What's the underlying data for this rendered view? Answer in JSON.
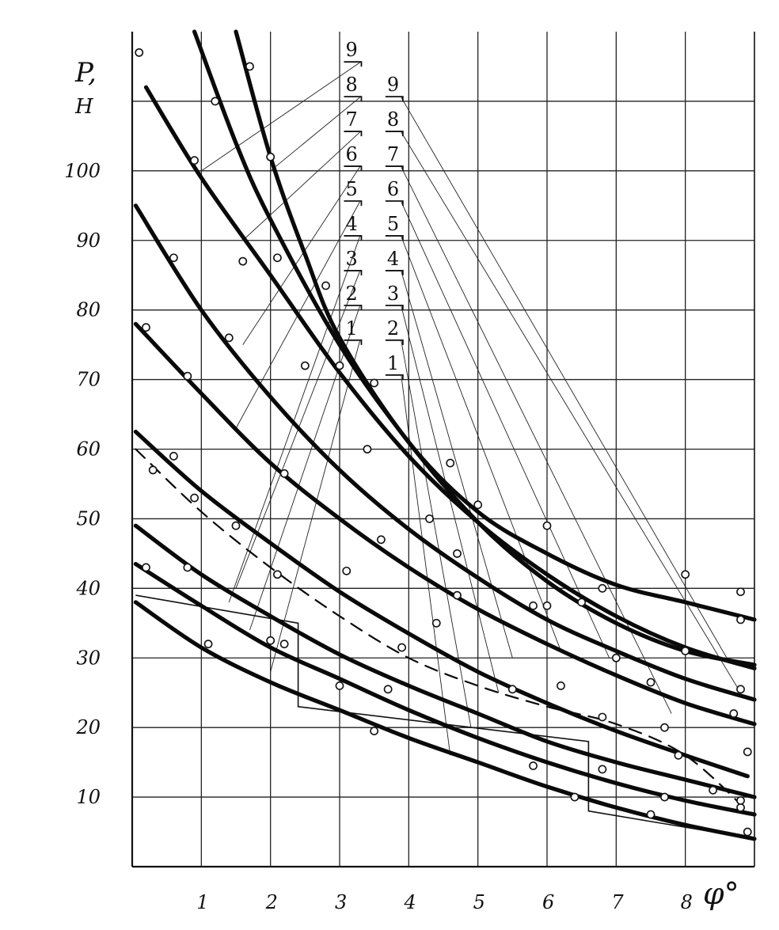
{
  "chart_data": {
    "type": "line",
    "ylabel": "P,",
    "yunit": "H",
    "xlabel": "φ°",
    "xlim": [
      0,
      9
    ],
    "ylim": [
      0,
      120
    ],
    "x_ticks": [
      {
        "value": 1,
        "label": "1"
      },
      {
        "value": 2,
        "label": "2"
      },
      {
        "value": 3,
        "label": "3"
      },
      {
        "value": 4,
        "label": "4"
      },
      {
        "value": 5,
        "label": "5"
      },
      {
        "value": 6,
        "label": "6"
      },
      {
        "value": 7,
        "label": "7"
      },
      {
        "value": 8,
        "label": "8"
      }
    ],
    "y_ticks": [
      {
        "value": 10,
        "label": "10"
      },
      {
        "value": 20,
        "label": "20"
      },
      {
        "value": 30,
        "label": "30"
      },
      {
        "value": 40,
        "label": "40"
      },
      {
        "value": 50,
        "label": "50"
      },
      {
        "value": 60,
        "label": "60"
      },
      {
        "value": 70,
        "label": "70"
      },
      {
        "value": 80,
        "label": "80"
      },
      {
        "value": 90,
        "label": "90"
      },
      {
        "value": 100,
        "label": "100"
      }
    ],
    "grid": true,
    "label_column_left": {
      "labels": [
        "1",
        "2",
        "3",
        "4",
        "5",
        "6",
        "7",
        "8",
        "9"
      ],
      "label_y": [
        76,
        81,
        86,
        91,
        96,
        101,
        106,
        111,
        116
      ],
      "x": 3.2,
      "targets": [
        {
          "x": 2.0,
          "y": 28
        },
        {
          "x": 1.7,
          "y": 34
        },
        {
          "x": 1.5,
          "y": 40
        },
        {
          "x": 1.4,
          "y": 38
        },
        {
          "x": 1.5,
          "y": 63
        },
        {
          "x": 1.6,
          "y": 75
        },
        {
          "x": 1.6,
          "y": 90
        },
        {
          "x": 2.0,
          "y": 100
        },
        {
          "x": 1.0,
          "y": 100
        }
      ]
    },
    "label_column_right": {
      "labels": [
        "1",
        "2",
        "3",
        "4",
        "5",
        "6",
        "7",
        "8",
        "9"
      ],
      "label_y": [
        71,
        76,
        81,
        86,
        91,
        96,
        101,
        106,
        111
      ],
      "x": 3.8,
      "targets": [
        {
          "x": 4.6,
          "y": 16
        },
        {
          "x": 4.9,
          "y": 20
        },
        {
          "x": 5.3,
          "y": 25
        },
        {
          "x": 5.5,
          "y": 30
        },
        {
          "x": 6.2,
          "y": 31
        },
        {
          "x": 6.9,
          "y": 30
        },
        {
          "x": 7.8,
          "y": 22
        },
        {
          "x": 8.8,
          "y": 25
        },
        {
          "x": 8.6,
          "y": 30
        }
      ]
    },
    "series": [
      {
        "style": "thick",
        "points": [
          [
            0.05,
            38
          ],
          [
            1.0,
            31.5
          ],
          [
            2.0,
            26.5
          ],
          [
            3.0,
            22.5
          ],
          [
            4.0,
            18.5
          ],
          [
            5.0,
            15
          ],
          [
            6.0,
            11.5
          ],
          [
            7.0,
            8.5
          ],
          [
            8.0,
            6
          ],
          [
            9.0,
            4
          ]
        ],
        "markers": [
          [
            1.1,
            32
          ],
          [
            3.5,
            19.5
          ],
          [
            6.4,
            10
          ],
          [
            7.5,
            7.5
          ],
          [
            8.9,
            5
          ]
        ]
      },
      {
        "style": "thick",
        "points": [
          [
            0.05,
            43.5
          ],
          [
            1.0,
            37.5
          ],
          [
            2.0,
            31.5
          ],
          [
            3.0,
            27
          ],
          [
            4.0,
            22.5
          ],
          [
            5.0,
            18.5
          ],
          [
            6.0,
            15
          ],
          [
            7.0,
            12
          ],
          [
            8.0,
            9.5
          ],
          [
            9.0,
            7.5
          ]
        ],
        "markers": [
          [
            0.2,
            43
          ],
          [
            2.0,
            32.5
          ],
          [
            3.0,
            26
          ],
          [
            5.8,
            14.5
          ],
          [
            7.7,
            10
          ],
          [
            8.8,
            8.5
          ]
        ]
      },
      {
        "style": "thick",
        "points": [
          [
            0.05,
            49
          ],
          [
            1.0,
            42
          ],
          [
            2.0,
            36
          ],
          [
            3.0,
            30.5
          ],
          [
            4.0,
            26
          ],
          [
            5.0,
            22
          ],
          [
            6.0,
            18
          ],
          [
            7.0,
            15
          ],
          [
            8.0,
            12.5
          ],
          [
            9.0,
            10
          ]
        ],
        "markers": [
          [
            0.8,
            43
          ],
          [
            2.2,
            32
          ],
          [
            3.7,
            25.5
          ],
          [
            6.8,
            14
          ],
          [
            8.4,
            11
          ]
        ]
      },
      {
        "style": "dashed",
        "points": [
          [
            0.05,
            60
          ],
          [
            1.0,
            51
          ],
          [
            2.0,
            43
          ],
          [
            3.0,
            36
          ],
          [
            4.0,
            30
          ],
          [
            5.0,
            26
          ],
          [
            6.0,
            23
          ],
          [
            7.0,
            20.5
          ],
          [
            8.0,
            16
          ],
          [
            8.9,
            8
          ]
        ],
        "markers": [
          [
            0.3,
            57
          ],
          [
            0.9,
            53
          ],
          [
            2.1,
            42
          ],
          [
            3.9,
            31.5
          ],
          [
            5.5,
            25.5
          ],
          [
            6.8,
            21.5
          ],
          [
            7.9,
            16
          ],
          [
            8.8,
            9.5
          ]
        ]
      },
      {
        "style": "thick",
        "points": [
          [
            0.05,
            62.5
          ],
          [
            1.0,
            54
          ],
          [
            2.0,
            46.5
          ],
          [
            3.0,
            39.5
          ],
          [
            4.0,
            33.5
          ],
          [
            5.0,
            28
          ],
          [
            6.0,
            23.5
          ],
          [
            7.0,
            19.5
          ],
          [
            8.0,
            16
          ],
          [
            8.9,
            13
          ]
        ],
        "markers": [
          [
            0.6,
            59
          ],
          [
            1.5,
            49
          ],
          [
            3.1,
            42.5
          ],
          [
            6.2,
            26
          ],
          [
            7.7,
            20
          ],
          [
            8.9,
            16.5
          ]
        ]
      },
      {
        "style": "thick",
        "points": [
          [
            0.05,
            78
          ],
          [
            1.0,
            68
          ],
          [
            2.0,
            58
          ],
          [
            3.0,
            50
          ],
          [
            4.0,
            43
          ],
          [
            5.0,
            37
          ],
          [
            6.0,
            32
          ],
          [
            7.0,
            27.5
          ],
          [
            8.0,
            23.5
          ],
          [
            9.0,
            20.5
          ]
        ],
        "markers": [
          [
            0.2,
            77.5
          ],
          [
            0.8,
            70.5
          ],
          [
            2.2,
            56.5
          ],
          [
            3.6,
            47
          ],
          [
            4.4,
            35
          ],
          [
            6.0,
            37.5
          ],
          [
            7.5,
            26.5
          ],
          [
            8.7,
            22
          ]
        ]
      },
      {
        "style": "thick",
        "points": [
          [
            0.05,
            95
          ],
          [
            1.0,
            80
          ],
          [
            2.0,
            67.5
          ],
          [
            3.0,
            57
          ],
          [
            4.0,
            48.5
          ],
          [
            5.0,
            41.5
          ],
          [
            6.0,
            35.5
          ],
          [
            7.0,
            31
          ],
          [
            8.0,
            27
          ],
          [
            9.0,
            24
          ]
        ],
        "markers": [
          [
            0.6,
            87.5
          ],
          [
            1.4,
            76
          ],
          [
            3.4,
            60
          ],
          [
            4.7,
            45
          ],
          [
            5.8,
            37.5
          ],
          [
            7.0,
            30
          ],
          [
            8.8,
            25.5
          ]
        ]
      },
      {
        "style": "thick",
        "points": [
          [
            0.2,
            112
          ],
          [
            1.0,
            99
          ],
          [
            2.0,
            85
          ],
          [
            3.0,
            71
          ],
          [
            4.0,
            59
          ],
          [
            5.0,
            49.5
          ],
          [
            6.0,
            42
          ],
          [
            7.0,
            36
          ],
          [
            8.0,
            31.5
          ],
          [
            9.0,
            28.5
          ]
        ],
        "markers": [
          [
            0.1,
            117
          ],
          [
            0.9,
            101.5
          ],
          [
            1.6,
            87
          ],
          [
            2.5,
            72
          ],
          [
            4.3,
            50
          ],
          [
            6.5,
            38
          ],
          [
            8.0,
            31
          ]
        ]
      },
      {
        "style": "thick",
        "points": [
          [
            0.9,
            120
          ],
          [
            1.5,
            104
          ],
          [
            2.0,
            93
          ],
          [
            3.0,
            75
          ],
          [
            4.0,
            61
          ],
          [
            5.0,
            49.5
          ],
          [
            6.0,
            41
          ],
          [
            7.0,
            35
          ],
          [
            8.0,
            31
          ],
          [
            9.0,
            29
          ]
        ],
        "markers": [
          [
            1.2,
            110
          ],
          [
            2.1,
            87.5
          ],
          [
            3.0,
            72
          ],
          [
            4.7,
            39
          ],
          [
            8.8,
            35.5
          ]
        ]
      },
      {
        "style": "thick",
        "points": [
          [
            1.5,
            120
          ],
          [
            2.0,
            102
          ],
          [
            2.5,
            88
          ],
          [
            3.0,
            76
          ],
          [
            4.0,
            61
          ],
          [
            5.0,
            51
          ],
          [
            6.0,
            45
          ],
          [
            7.0,
            40.5
          ],
          [
            8.0,
            38
          ],
          [
            9.0,
            35.5
          ]
        ],
        "markers": [
          [
            1.7,
            115
          ],
          [
            2.0,
            102
          ],
          [
            2.8,
            83.5
          ],
          [
            3.5,
            69.5
          ],
          [
            4.6,
            58
          ],
          [
            5.0,
            52
          ],
          [
            6.0,
            49
          ],
          [
            6.8,
            40
          ],
          [
            8.0,
            42
          ],
          [
            8.8,
            39.5
          ]
        ]
      }
    ],
    "step_lines": [
      [
        [
          0.05,
          39
        ],
        [
          2.4,
          35
        ],
        [
          2.4,
          23
        ],
        [
          6.6,
          18
        ],
        [
          6.6,
          8
        ],
        [
          9.0,
          4
        ]
      ]
    ]
  }
}
